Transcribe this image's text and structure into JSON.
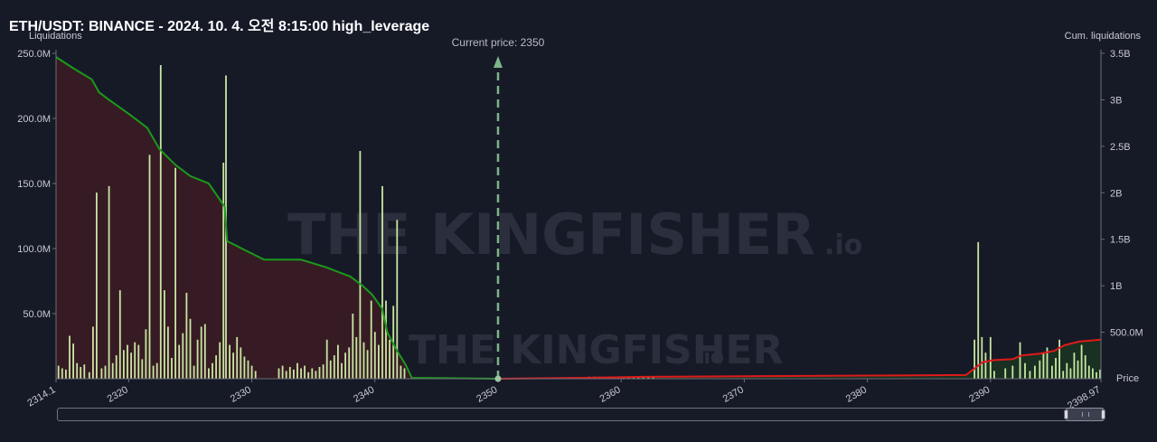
{
  "title": "ETH/USDT: BINANCE - 2024. 10. 4. 오전 8:15:00 high_leverage",
  "watermark": {
    "brand": "THE KINGFISHER",
    "suffix": ".io"
  },
  "colors": {
    "background": "#161a27",
    "bars": "#c8e6a0",
    "long_cum_line": "#1b9a1b",
    "long_fill": "#3d1c25",
    "short_cum_line": "#e01a1a",
    "short_fill": "#1a3322",
    "current_price_line": "#7fb38a"
  },
  "chart_data": {
    "type": "bar",
    "xlabel": "Price",
    "ylabel_left": "Liquidations",
    "ylabel_right": "Cum. liquidations",
    "x_range": [
      2314.1,
      2398.97
    ],
    "xlim": [
      2314.1,
      2398.97
    ],
    "ylim_left": [
      0,
      250000000
    ],
    "ylim_right": [
      0,
      3500000000
    ],
    "x_ticks": [
      "2314.1",
      "2320",
      "2330",
      "2340",
      "2350",
      "2360",
      "2370",
      "2380",
      "2390",
      "2398.97"
    ],
    "y_ticks_left": [
      "50.0M",
      "100.0M",
      "150.0M",
      "200.0M",
      "250.0M"
    ],
    "y_ticks_right": [
      "500.0M",
      "1B",
      "1.5B",
      "2B",
      "2.5B",
      "3B",
      "3.5B"
    ],
    "current_price": {
      "label": "Current price: 2350",
      "value": 2350
    },
    "bars": [
      {
        "x": 2314.3,
        "y": 10
      },
      {
        "x": 2314.6,
        "y": 8
      },
      {
        "x": 2314.9,
        "y": 7
      },
      {
        "x": 2315.2,
        "y": 33
      },
      {
        "x": 2315.5,
        "y": 27
      },
      {
        "x": 2315.8,
        "y": 12
      },
      {
        "x": 2316.1,
        "y": 9
      },
      {
        "x": 2316.4,
        "y": 11
      },
      {
        "x": 2316.8,
        "y": 5
      },
      {
        "x": 2317.1,
        "y": 40
      },
      {
        "x": 2317.4,
        "y": 143
      },
      {
        "x": 2317.8,
        "y": 8
      },
      {
        "x": 2318.1,
        "y": 10
      },
      {
        "x": 2318.4,
        "y": 148
      },
      {
        "x": 2318.7,
        "y": 12
      },
      {
        "x": 2319.0,
        "y": 18
      },
      {
        "x": 2319.3,
        "y": 68
      },
      {
        "x": 2319.6,
        "y": 22
      },
      {
        "x": 2319.9,
        "y": 26
      },
      {
        "x": 2320.2,
        "y": 20
      },
      {
        "x": 2320.5,
        "y": 28
      },
      {
        "x": 2320.8,
        "y": 26
      },
      {
        "x": 2321.1,
        "y": 15
      },
      {
        "x": 2321.4,
        "y": 38
      },
      {
        "x": 2321.7,
        "y": 172
      },
      {
        "x": 2322.0,
        "y": 10
      },
      {
        "x": 2322.3,
        "y": 12
      },
      {
        "x": 2322.6,
        "y": 241
      },
      {
        "x": 2322.9,
        "y": 68
      },
      {
        "x": 2323.2,
        "y": 40
      },
      {
        "x": 2323.5,
        "y": 16
      },
      {
        "x": 2323.8,
        "y": 162
      },
      {
        "x": 2324.1,
        "y": 26
      },
      {
        "x": 2324.4,
        "y": 35
      },
      {
        "x": 2324.7,
        "y": 66
      },
      {
        "x": 2325.0,
        "y": 46
      },
      {
        "x": 2325.3,
        "y": 10
      },
      {
        "x": 2325.6,
        "y": 30
      },
      {
        "x": 2325.9,
        "y": 40
      },
      {
        "x": 2326.2,
        "y": 42
      },
      {
        "x": 2326.5,
        "y": 8
      },
      {
        "x": 2326.8,
        "y": 12
      },
      {
        "x": 2327.1,
        "y": 18
      },
      {
        "x": 2327.4,
        "y": 28
      },
      {
        "x": 2327.7,
        "y": 166
      },
      {
        "x": 2327.9,
        "y": 233
      },
      {
        "x": 2328.2,
        "y": 26
      },
      {
        "x": 2328.5,
        "y": 20
      },
      {
        "x": 2328.8,
        "y": 32
      },
      {
        "x": 2329.1,
        "y": 24
      },
      {
        "x": 2329.4,
        "y": 17
      },
      {
        "x": 2329.7,
        "y": 14
      },
      {
        "x": 2330.0,
        "y": 10
      },
      {
        "x": 2330.3,
        "y": 6
      },
      {
        "x": 2332.2,
        "y": 8
      },
      {
        "x": 2332.5,
        "y": 10
      },
      {
        "x": 2332.8,
        "y": 6
      },
      {
        "x": 2333.1,
        "y": 9
      },
      {
        "x": 2333.4,
        "y": 7
      },
      {
        "x": 2333.7,
        "y": 12
      },
      {
        "x": 2334.0,
        "y": 8
      },
      {
        "x": 2334.3,
        "y": 10
      },
      {
        "x": 2334.6,
        "y": 5
      },
      {
        "x": 2334.9,
        "y": 8
      },
      {
        "x": 2335.2,
        "y": 6
      },
      {
        "x": 2335.5,
        "y": 9
      },
      {
        "x": 2335.8,
        "y": 11
      },
      {
        "x": 2336.1,
        "y": 30
      },
      {
        "x": 2336.4,
        "y": 14
      },
      {
        "x": 2336.7,
        "y": 18
      },
      {
        "x": 2337.0,
        "y": 26
      },
      {
        "x": 2337.3,
        "y": 12
      },
      {
        "x": 2337.6,
        "y": 20
      },
      {
        "x": 2337.9,
        "y": 24
      },
      {
        "x": 2338.2,
        "y": 50
      },
      {
        "x": 2338.5,
        "y": 32
      },
      {
        "x": 2338.8,
        "y": 175
      },
      {
        "x": 2339.1,
        "y": 28
      },
      {
        "x": 2339.4,
        "y": 22
      },
      {
        "x": 2339.7,
        "y": 60
      },
      {
        "x": 2340.0,
        "y": 36
      },
      {
        "x": 2340.3,
        "y": 26
      },
      {
        "x": 2340.6,
        "y": 148
      },
      {
        "x": 2340.9,
        "y": 60
      },
      {
        "x": 2341.2,
        "y": 30
      },
      {
        "x": 2341.5,
        "y": 56
      },
      {
        "x": 2341.8,
        "y": 122
      },
      {
        "x": 2342.1,
        "y": 10
      },
      {
        "x": 2342.4,
        "y": 8
      },
      {
        "x": 2357.4,
        "y": 1.5
      },
      {
        "x": 2357.8,
        "y": 1.5
      },
      {
        "x": 2358.2,
        "y": 1.5
      },
      {
        "x": 2358.6,
        "y": 1.5
      },
      {
        "x": 2359.0,
        "y": 1.5
      },
      {
        "x": 2359.4,
        "y": 1.5
      },
      {
        "x": 2359.8,
        "y": 1.5
      },
      {
        "x": 2360.2,
        "y": 1.5
      },
      {
        "x": 2360.6,
        "y": 1.5
      },
      {
        "x": 2361.0,
        "y": 1.5
      },
      {
        "x": 2361.4,
        "y": 1.5
      },
      {
        "x": 2361.8,
        "y": 1.5
      },
      {
        "x": 2362.2,
        "y": 1.5
      },
      {
        "x": 2362.6,
        "y": 1.5
      },
      {
        "x": 2388.7,
        "y": 30
      },
      {
        "x": 2389.0,
        "y": 105
      },
      {
        "x": 2389.3,
        "y": 32
      },
      {
        "x": 2389.6,
        "y": 20
      },
      {
        "x": 2390.0,
        "y": 32
      },
      {
        "x": 2390.3,
        "y": 6
      },
      {
        "x": 2391.2,
        "y": 8
      },
      {
        "x": 2391.8,
        "y": 10
      },
      {
        "x": 2392.4,
        "y": 28
      },
      {
        "x": 2392.8,
        "y": 12
      },
      {
        "x": 2393.2,
        "y": 6
      },
      {
        "x": 2393.6,
        "y": 10
      },
      {
        "x": 2394.0,
        "y": 14
      },
      {
        "x": 2394.3,
        "y": 20
      },
      {
        "x": 2394.6,
        "y": 24
      },
      {
        "x": 2395.0,
        "y": 10
      },
      {
        "x": 2395.3,
        "y": 16
      },
      {
        "x": 2395.6,
        "y": 30
      },
      {
        "x": 2395.9,
        "y": 6
      },
      {
        "x": 2396.2,
        "y": 12
      },
      {
        "x": 2396.5,
        "y": 8
      },
      {
        "x": 2396.8,
        "y": 20
      },
      {
        "x": 2397.1,
        "y": 14
      },
      {
        "x": 2397.4,
        "y": 26
      },
      {
        "x": 2397.7,
        "y": 18
      },
      {
        "x": 2398.0,
        "y": 10
      },
      {
        "x": 2398.3,
        "y": 8
      },
      {
        "x": 2398.6,
        "y": 5
      },
      {
        "x": 2398.9,
        "y": 7
      }
    ],
    "bars_units": "millions",
    "long_cumulative": [
      {
        "x": 2314.1,
        "y": 3460
      },
      {
        "x": 2315.5,
        "y": 3340
      },
      {
        "x": 2317.0,
        "y": 3220
      },
      {
        "x": 2317.6,
        "y": 3080
      },
      {
        "x": 2318.4,
        "y": 3000
      },
      {
        "x": 2320.0,
        "y": 2850
      },
      {
        "x": 2321.5,
        "y": 2700
      },
      {
        "x": 2322.5,
        "y": 2470
      },
      {
        "x": 2323.8,
        "y": 2300
      },
      {
        "x": 2325.0,
        "y": 2180
      },
      {
        "x": 2326.5,
        "y": 2100
      },
      {
        "x": 2327.8,
        "y": 1850
      },
      {
        "x": 2328.0,
        "y": 1480
      },
      {
        "x": 2329.5,
        "y": 1380
      },
      {
        "x": 2331.0,
        "y": 1280
      },
      {
        "x": 2334.0,
        "y": 1280
      },
      {
        "x": 2336.0,
        "y": 1200
      },
      {
        "x": 2338.0,
        "y": 1100
      },
      {
        "x": 2339.0,
        "y": 1000
      },
      {
        "x": 2339.8,
        "y": 900
      },
      {
        "x": 2340.6,
        "y": 750
      },
      {
        "x": 2341.0,
        "y": 500
      },
      {
        "x": 2341.8,
        "y": 300
      },
      {
        "x": 2342.5,
        "y": 150
      },
      {
        "x": 2343.0,
        "y": 10
      },
      {
        "x": 2350.0,
        "y": 0
      }
    ],
    "short_cumulative": [
      {
        "x": 2350.0,
        "y": 0
      },
      {
        "x": 2357.0,
        "y": 10
      },
      {
        "x": 2362.0,
        "y": 20
      },
      {
        "x": 2388.0,
        "y": 40
      },
      {
        "x": 2388.8,
        "y": 120
      },
      {
        "x": 2389.4,
        "y": 180
      },
      {
        "x": 2390.3,
        "y": 200
      },
      {
        "x": 2391.8,
        "y": 210
      },
      {
        "x": 2392.5,
        "y": 250
      },
      {
        "x": 2394.0,
        "y": 270
      },
      {
        "x": 2395.2,
        "y": 300
      },
      {
        "x": 2396.0,
        "y": 360
      },
      {
        "x": 2397.2,
        "y": 400
      },
      {
        "x": 2398.97,
        "y": 420
      }
    ],
    "cumulative_units": "millions",
    "grid": false,
    "legend": "none"
  }
}
